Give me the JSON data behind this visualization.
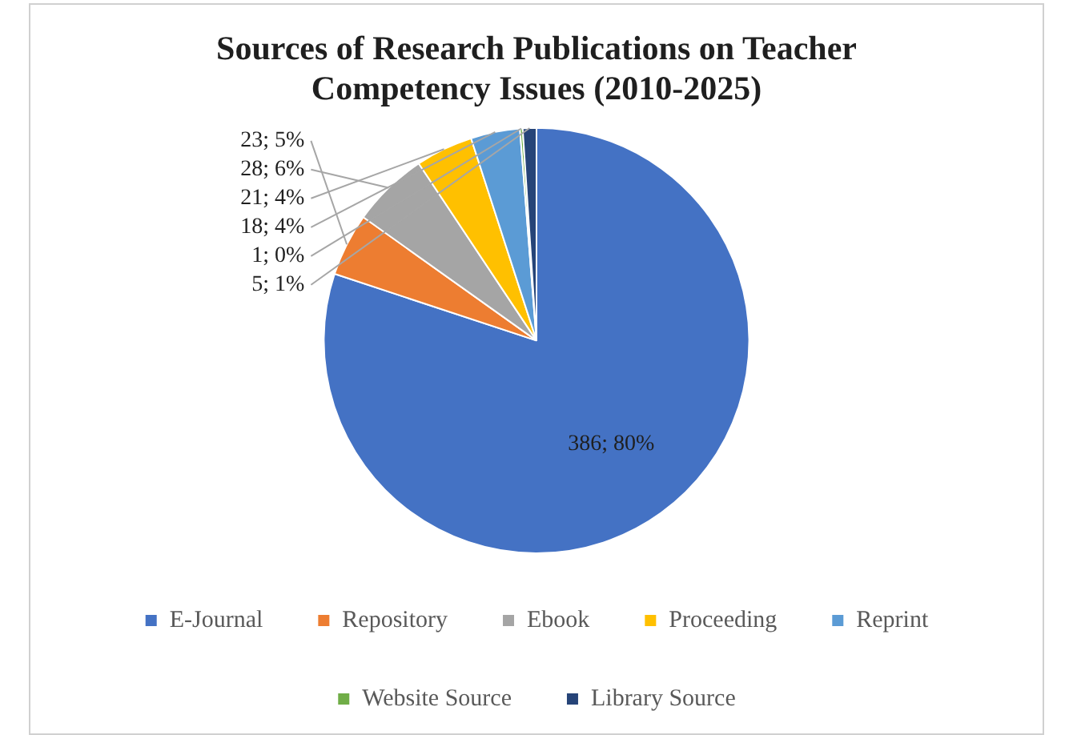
{
  "chart_data": {
    "type": "pie",
    "title": "Sources of Research Publications on Teacher Competency Issues (2010-2025)",
    "categories": [
      "E-Journal",
      "Repository",
      "Ebook",
      "Proceeding",
      "Reprint",
      "Website Source",
      "Library Source"
    ],
    "values": [
      386,
      23,
      28,
      21,
      18,
      1,
      5
    ],
    "colors": [
      "#4472c4",
      "#ed7d31",
      "#a5a5a5",
      "#ffc000",
      "#5b9bd5",
      "#70ad47",
      "#264478"
    ],
    "value_labels": [
      "386; 80%",
      "23; 5%",
      "28; 6%",
      "21; 4%",
      "18; 4%",
      "1; 0%",
      "5; 1%"
    ],
    "legend": "bottom"
  }
}
